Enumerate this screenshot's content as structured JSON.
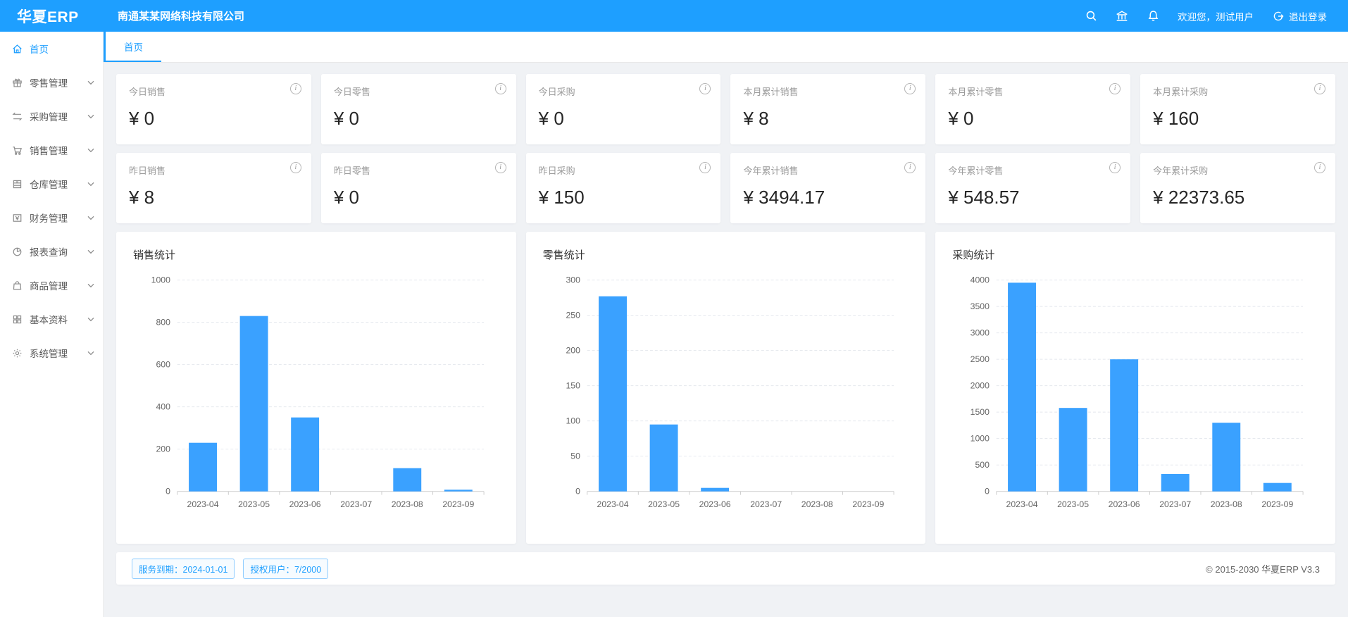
{
  "header": {
    "logo": "华夏ERP",
    "company": "南通某某网络科技有限公司",
    "welcome": "欢迎您，测试用户",
    "logout_label": "退出登录",
    "icons": [
      "search-icon",
      "bank-icon",
      "bell-icon",
      "logout-icon"
    ],
    "bg_color": "#1e9fff"
  },
  "sidebar": {
    "items": [
      {
        "label": "首页",
        "icon": "home-icon",
        "active": true
      },
      {
        "label": "零售管理",
        "icon": "gift-icon",
        "active": false
      },
      {
        "label": "采购管理",
        "icon": "swap-icon",
        "active": false
      },
      {
        "label": "销售管理",
        "icon": "cart-icon",
        "active": false
      },
      {
        "label": "仓库管理",
        "icon": "archive-icon",
        "active": false
      },
      {
        "label": "财务管理",
        "icon": "wallet-icon",
        "active": false
      },
      {
        "label": "报表查询",
        "icon": "pie-icon",
        "active": false
      },
      {
        "label": "商品管理",
        "icon": "bag-icon",
        "active": false
      },
      {
        "label": "基本资料",
        "icon": "grid-icon",
        "active": false
      },
      {
        "label": "系统管理",
        "icon": "gear-icon",
        "active": false
      }
    ]
  },
  "tabs": [
    {
      "label": "首页",
      "active": true
    }
  ],
  "stat_cards": [
    {
      "label": "今日销售",
      "value": "¥ 0"
    },
    {
      "label": "今日零售",
      "value": "¥ 0"
    },
    {
      "label": "今日采购",
      "value": "¥ 0"
    },
    {
      "label": "本月累计销售",
      "value": "¥ 8"
    },
    {
      "label": "本月累计零售",
      "value": "¥ 0"
    },
    {
      "label": "本月累计采购",
      "value": "¥ 160"
    },
    {
      "label": "昨日销售",
      "value": "¥ 8"
    },
    {
      "label": "昨日零售",
      "value": "¥ 0"
    },
    {
      "label": "昨日采购",
      "value": "¥ 150"
    },
    {
      "label": "今年累计销售",
      "value": "¥ 3494.17"
    },
    {
      "label": "今年累计零售",
      "value": "¥ 548.57"
    },
    {
      "label": "今年累计采购",
      "value": "¥ 22373.65"
    }
  ],
  "chart_data": [
    {
      "type": "bar",
      "title": "销售统计",
      "categories": [
        "2023-04",
        "2023-05",
        "2023-06",
        "2023-07",
        "2023-08",
        "2023-09"
      ],
      "values": [
        230,
        830,
        350,
        0,
        110,
        8
      ],
      "ylim": [
        0,
        1000
      ],
      "ytick": 200,
      "xlabel": "",
      "ylabel": "",
      "grid": true,
      "legend": "none",
      "bar_color": "#3aa1ff"
    },
    {
      "type": "bar",
      "title": "零售统计",
      "categories": [
        "2023-04",
        "2023-05",
        "2023-06",
        "2023-07",
        "2023-08",
        "2023-09"
      ],
      "values": [
        277,
        95,
        5,
        0,
        0,
        0
      ],
      "ylim": [
        0,
        300
      ],
      "ytick": 50,
      "xlabel": "",
      "ylabel": "",
      "grid": true,
      "legend": "none",
      "bar_color": "#3aa1ff"
    },
    {
      "type": "bar",
      "title": "采购统计",
      "categories": [
        "2023-04",
        "2023-05",
        "2023-06",
        "2023-07",
        "2023-08",
        "2023-09"
      ],
      "values": [
        3950,
        1580,
        2500,
        330,
        1300,
        160
      ],
      "ylim": [
        0,
        4000
      ],
      "ytick": 500,
      "xlabel": "",
      "ylabel": "",
      "grid": true,
      "legend": "none",
      "bar_color": "#3aa1ff"
    }
  ],
  "footer": {
    "service_badge": "服务到期：2024-01-01",
    "license_badge": "授权用户：7/2000",
    "copyright": "© 2015-2030 华夏ERP V3.3"
  }
}
